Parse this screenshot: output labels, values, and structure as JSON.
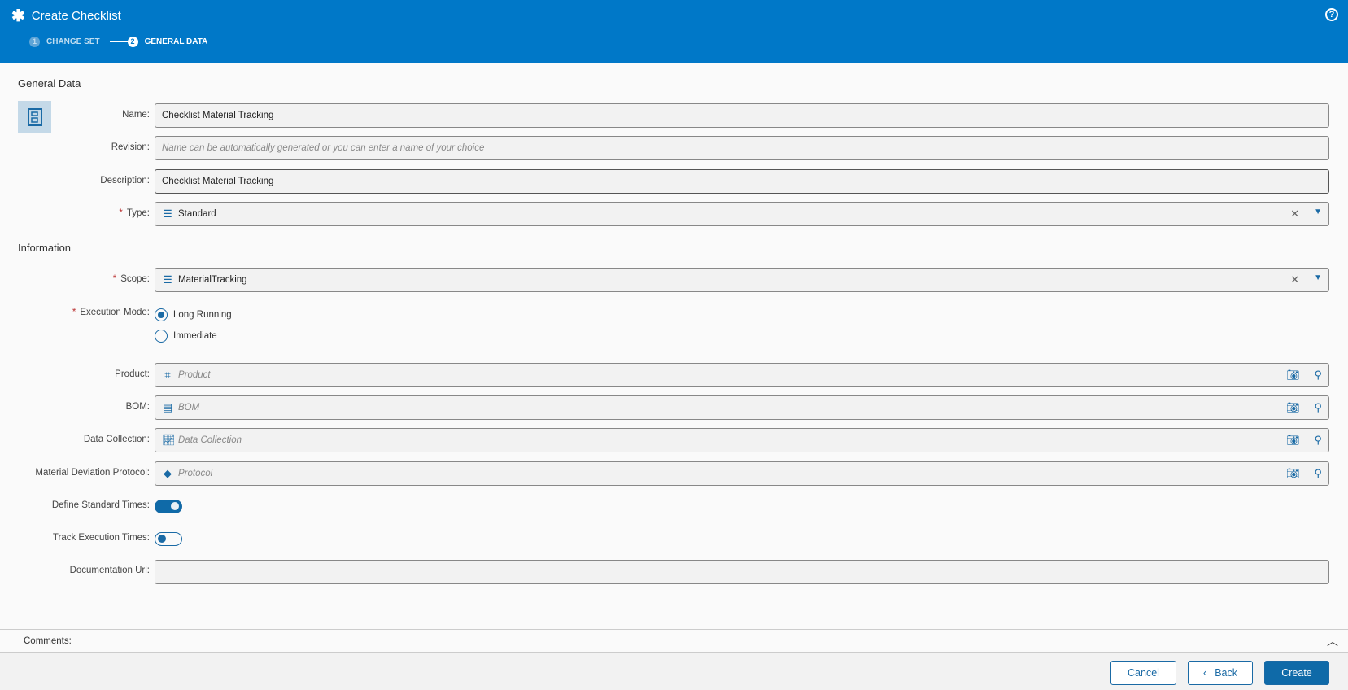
{
  "header": {
    "title": "Create Checklist",
    "steps": [
      {
        "num": "1",
        "label": "CHANGE SET"
      },
      {
        "num": "2",
        "label": "GENERAL DATA"
      }
    ],
    "help": "?"
  },
  "general": {
    "heading": "General Data",
    "name": {
      "label": "Name:",
      "value": "Checklist Material Tracking"
    },
    "revision": {
      "label": "Revision:",
      "placeholder": "Name can be automatically generated or you can enter a name of your choice"
    },
    "description": {
      "label": "Description:",
      "value": "Checklist Material Tracking"
    },
    "type": {
      "label": "Type:",
      "value": "Standard",
      "required": "*"
    }
  },
  "information": {
    "heading": "Information",
    "scope": {
      "label": "Scope:",
      "value": "MaterialTracking",
      "required": "*"
    },
    "execution_mode": {
      "label": "Execution Mode:",
      "required": "*",
      "options": [
        "Long Running",
        "Immediate"
      ],
      "selected": "Long Running"
    },
    "product": {
      "label": "Product:",
      "placeholder": "Product"
    },
    "bom": {
      "label": "BOM:",
      "placeholder": "BOM"
    },
    "data_collection": {
      "label": "Data Collection:",
      "placeholder": "Data Collection"
    },
    "protocol": {
      "label": "Material Deviation Protocol:",
      "placeholder": "Protocol"
    },
    "define_standard_times": {
      "label": "Define Standard Times:",
      "on": true
    },
    "track_execution_times": {
      "label": "Track Execution Times:",
      "on": false
    },
    "documentation_url": {
      "label": "Documentation Url:",
      "value": ""
    }
  },
  "comments": {
    "label": "Comments:"
  },
  "footer": {
    "cancel": "Cancel",
    "back": "Back",
    "create": "Create"
  },
  "colors": {
    "header": "#0078c8",
    "accent": "#0f6aa8"
  }
}
